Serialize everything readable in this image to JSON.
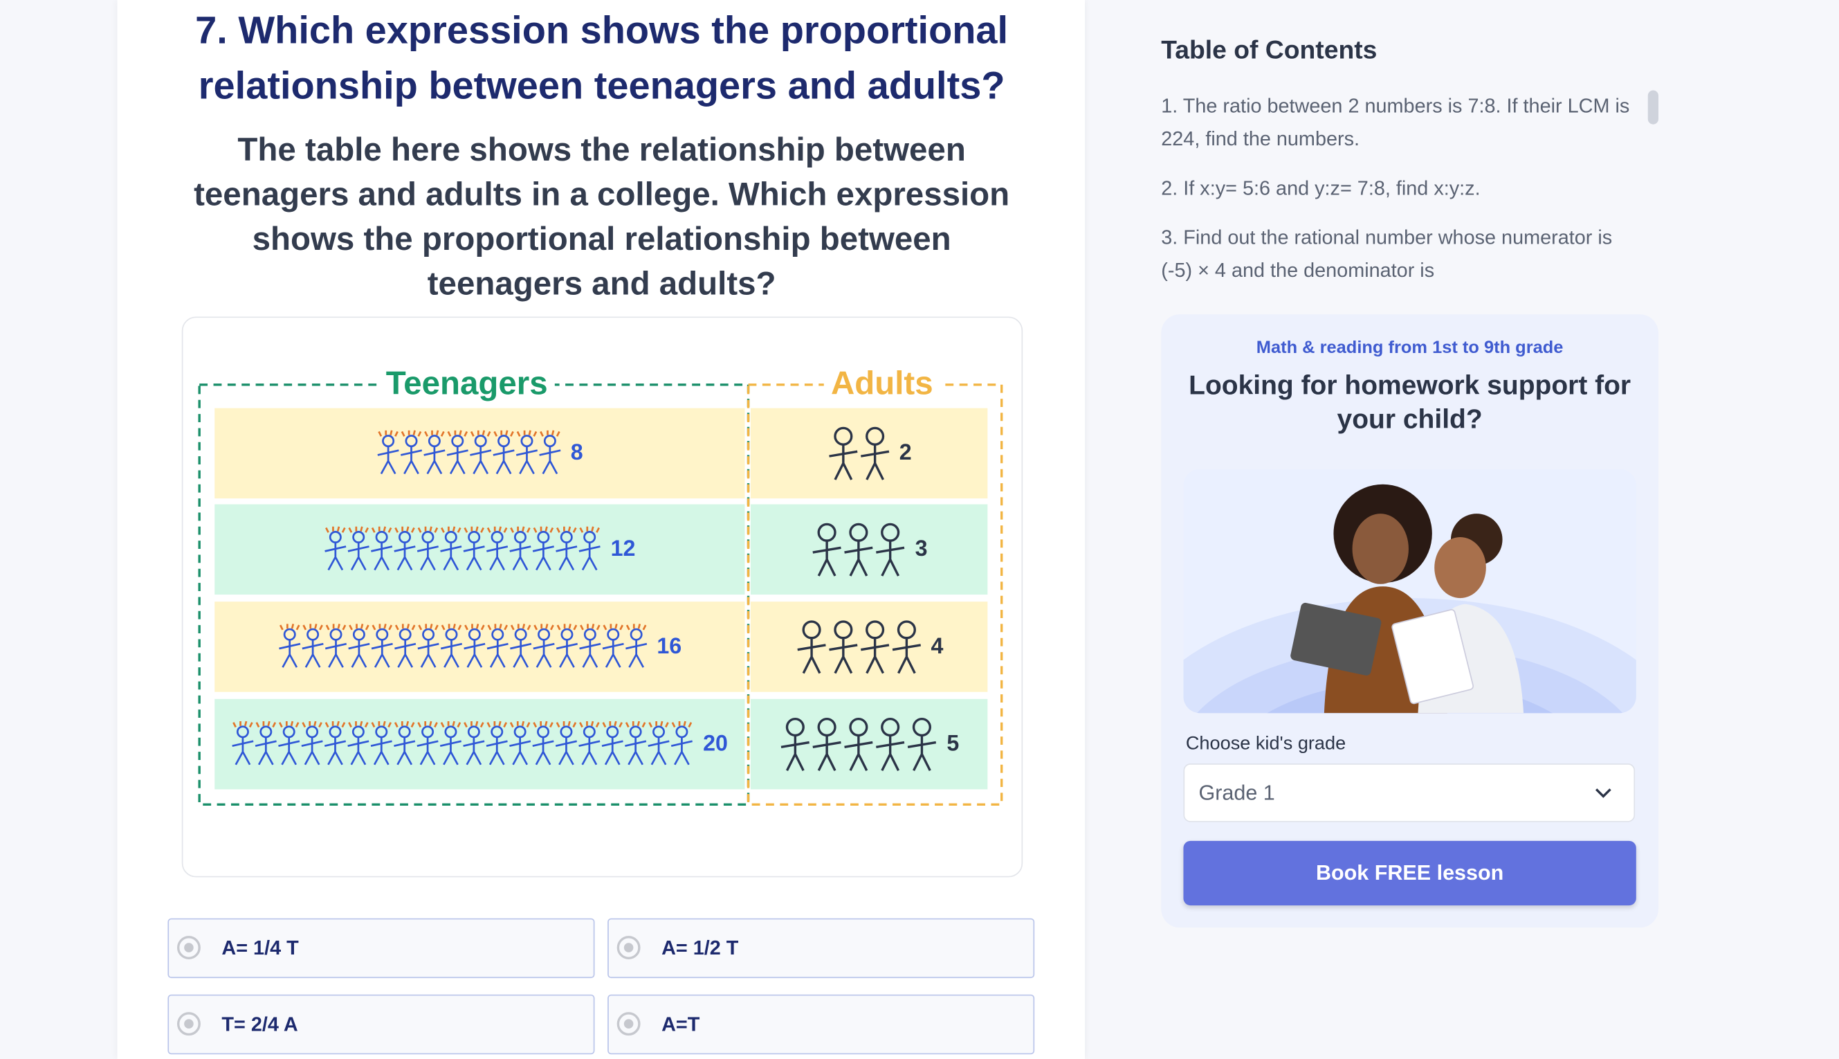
{
  "question": {
    "title": "7. Which expression shows the proportional relationship between teenagers and adults?",
    "description": "The table here shows the relationship between teenagers and adults in a college. Which expression shows the proportional relationship between teenagers and adults?"
  },
  "figure": {
    "headers": [
      "Teenagers",
      "Adults"
    ],
    "rows": [
      {
        "teenagers": 8,
        "adults": 2
      },
      {
        "teenagers": 12,
        "adults": 3
      },
      {
        "teenagers": 16,
        "adults": 4
      },
      {
        "teenagers": 20,
        "adults": 5
      }
    ]
  },
  "options": [
    "A= 1/4 T",
    "A= 1/2 T",
    "T= 2/4 A",
    "A=T"
  ],
  "toc": {
    "title": "Table of Contents",
    "items": [
      "1. The ratio between 2 numbers is 7:8. If their LCM is 224, find the numbers.",
      "2. If x:y= 5:6 and y:z= 7:8, find x:y:z.",
      "3. Find out the rational number whose numerator is (-5) × 4 and the denominator is"
    ]
  },
  "promo": {
    "subtitle": "Math & reading from 1st to 9th grade",
    "title": "Looking for homework support for your child?",
    "select_label": "Choose kid's grade",
    "select_value": "Grade 1",
    "button": "Book FREE lesson"
  }
}
